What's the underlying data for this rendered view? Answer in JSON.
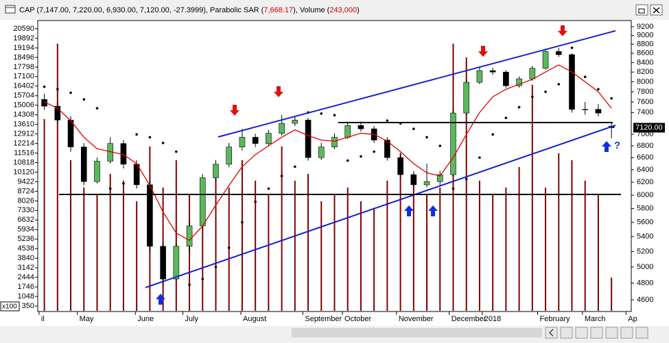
{
  "window": {
    "title_parts": [
      "CAP (7,147.00, 7,220.00, 6,930.00, 7,120.00, -27.3999), Parabolic SAR (",
      "7,668.17",
      "), Volume (",
      "243,000",
      ")"
    ],
    "title_colors": [
      "#000000",
      "#d00000",
      "#000000",
      "#d00000",
      "#000000"
    ]
  },
  "chart_data": {
    "type": "candlestick",
    "price_scale": "log",
    "open": [
      7650,
      7520,
      7260,
      6780,
      6210,
      6540,
      6840,
      6490,
      6160,
      5270,
      4850,
      5270,
      5550,
      6270,
      6490,
      6780,
      6950,
      6840,
      7020,
      7200,
      7260,
      6600,
      6780,
      6950,
      7160,
      7100,
      6900,
      6600,
      6320,
      6160,
      6210,
      6320,
      7390,
      7990,
      8230,
      8200,
      7920,
      8060,
      8280,
      8640,
      8570,
      7460,
      7460,
      7147
    ],
    "high": [
      7760,
      7600,
      7330,
      6850,
      6600,
      6950,
      6900,
      6560,
      6220,
      5330,
      5320,
      5620,
      6330,
      6560,
      6850,
      7100,
      7010,
      7080,
      7350,
      7340,
      7300,
      6850,
      7020,
      7230,
      7230,
      7150,
      6950,
      6680,
      6380,
      6500,
      6380,
      7450,
      8050,
      8300,
      8290,
      8240,
      8110,
      8330,
      8700,
      8720,
      8600,
      7600,
      7560,
      7220
    ],
    "low": [
      7450,
      7200,
      6700,
      6150,
      6180,
      6500,
      6420,
      6100,
      5200,
      4780,
      4820,
      5200,
      5500,
      6200,
      6440,
      6720,
      6780,
      6800,
      6980,
      7150,
      6550,
      6560,
      6740,
      6920,
      7050,
      6850,
      6550,
      6260,
      6100,
      6120,
      6150,
      6300,
      7350,
      7950,
      8140,
      7880,
      7880,
      8020,
      8250,
      8520,
      7400,
      7360,
      7330,
      6930
    ],
    "close": [
      7520,
      7260,
      6780,
      6210,
      6540,
      6840,
      6490,
      6160,
      5270,
      4850,
      5270,
      5550,
      6270,
      6490,
      6780,
      6950,
      6840,
      7020,
      7200,
      7260,
      6600,
      6780,
      6950,
      7160,
      7100,
      6900,
      6600,
      6320,
      6160,
      6210,
      6320,
      7390,
      7990,
      8230,
      8200,
      7920,
      8060,
      8280,
      8640,
      8570,
      7460,
      7460,
      7390,
      7120
    ],
    "up_color": "#5cb85c",
    "down_color": "#000000",
    "xlim": [
      -0.5,
      44.5
    ],
    "xticks": [
      {
        "value": -0.4,
        "label": "il"
      },
      {
        "value": 2.5,
        "label": "May"
      },
      {
        "value": 6.9,
        "label": "June"
      },
      {
        "value": 10.5,
        "label": "July"
      },
      {
        "value": 14.9,
        "label": "August"
      },
      {
        "value": 19.6,
        "label": "September"
      },
      {
        "value": 22.6,
        "label": "October"
      },
      {
        "value": 26.7,
        "label": "November"
      },
      {
        "value": 30.7,
        "label": "December"
      },
      {
        "value": 33.2,
        "label": "2018"
      },
      {
        "value": 37.4,
        "label": "February"
      },
      {
        "value": 40.8,
        "label": "March"
      },
      {
        "value": 44.1,
        "label": "Ap"
      }
    ],
    "ylim": [
      4600,
      9200
    ],
    "yticks": [
      4600,
      4800,
      5000,
      5200,
      5400,
      5600,
      5800,
      6000,
      6200,
      6400,
      6600,
      6800,
      7000,
      7400,
      7600,
      7800,
      8000,
      8200,
      8400,
      8600,
      8800,
      9000,
      9200
    ],
    "sar": {
      "color": "#000000",
      "values": [
        7900,
        7850,
        7780,
        7650,
        7480,
        6100,
        6180,
        7000,
        6950,
        6850,
        6700,
        4780,
        4850,
        5000,
        5250,
        5600,
        5900,
        6100,
        6300,
        6450,
        7400,
        7380,
        7350,
        6550,
        6620,
        6700,
        7250,
        7200,
        7100,
        6950,
        6800,
        6100,
        6250,
        6600,
        7000,
        7300,
        7500,
        7700,
        7800,
        7950,
        8720,
        8100,
        7850,
        7670
      ]
    },
    "ma": {
      "color": "#e00000",
      "values": [
        7600,
        7480,
        7250,
        6950,
        6750,
        6700,
        6650,
        6500,
        6150,
        5750,
        5450,
        5350,
        5550,
        5850,
        6150,
        6450,
        6650,
        6800,
        6950,
        7080,
        6980,
        6900,
        6880,
        6950,
        7020,
        7000,
        6880,
        6700,
        6500,
        6350,
        6300,
        6600,
        7000,
        7400,
        7700,
        7850,
        7950,
        8050,
        8200,
        8350,
        8200,
        8000,
        7800,
        7480
      ]
    },
    "volume": {
      "color": "#800000",
      "unit": "x100",
      "ylim": [
        0,
        20740
      ],
      "yticks": [
        350,
        1048,
        1746,
        2444,
        3142,
        3840,
        4538,
        5236,
        5934,
        6632,
        7330,
        8026,
        8724,
        9422,
        10120,
        10818,
        11516,
        12214,
        12912,
        13610,
        14308,
        15006,
        15704,
        16402,
        17100,
        17798,
        18496,
        19194,
        19892,
        20590
      ],
      "values": [
        14000,
        19500,
        11000,
        9000,
        8500,
        10000,
        9500,
        8000,
        12000,
        9000,
        11000,
        8500,
        9500,
        10500,
        9000,
        11000,
        9500,
        8500,
        12000,
        9500,
        10000,
        8000,
        8500,
        9000,
        8000,
        7500,
        9500,
        11500,
        10000,
        8500,
        9000,
        19500,
        18500,
        9500,
        8500,
        9000,
        10500,
        16500,
        9000,
        11500,
        11000,
        9500,
        8500,
        2430
      ]
    },
    "last_price": {
      "value": 7120,
      "label": "7120.00"
    },
    "annotations": {
      "question": "?"
    }
  }
}
